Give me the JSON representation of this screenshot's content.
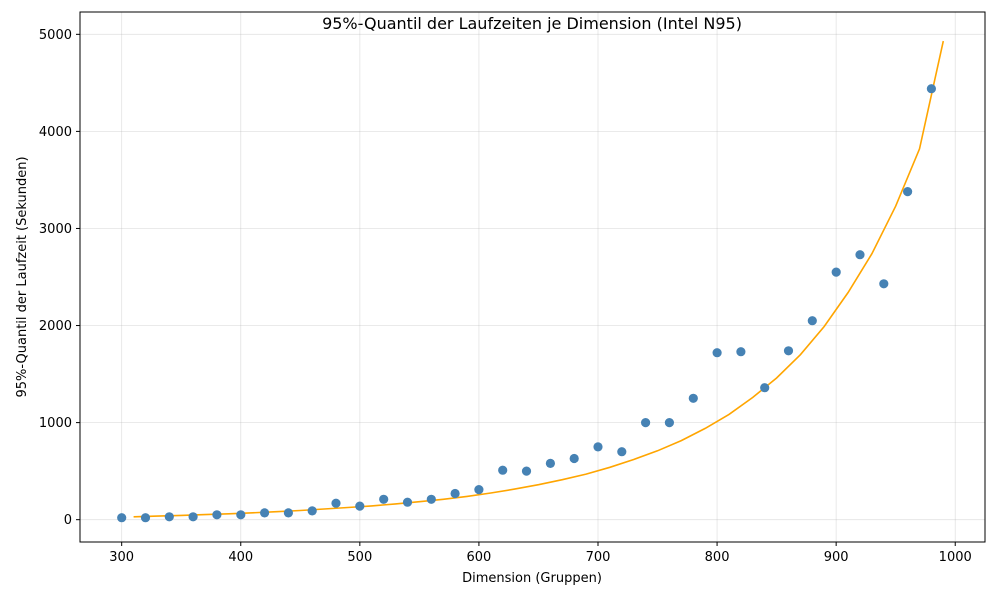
{
  "chart_data": {
    "type": "scatter",
    "title": "95%-Quantil der Laufzeiten je Dimension (Intel N95)",
    "xlabel": "Dimension (Gruppen)",
    "ylabel": "95%-Quantil der Laufzeit (Sekunden)",
    "xlim": [
      265,
      1025
    ],
    "ylim": [
      -230,
      5230
    ],
    "xticks": [
      300,
      400,
      500,
      600,
      700,
      800,
      900,
      1000
    ],
    "yticks": [
      0,
      1000,
      2000,
      3000,
      4000,
      5000
    ],
    "grid": true,
    "colors": {
      "points": "#4682b4",
      "fit": "#ffa500"
    },
    "series": [
      {
        "kind": "scatter",
        "x": [
          300,
          320,
          340,
          360,
          380,
          400,
          420,
          440,
          460,
          480,
          500,
          520,
          540,
          560,
          580,
          600,
          620,
          640,
          660,
          680,
          700,
          720,
          740,
          760,
          780,
          800,
          820,
          840,
          860,
          880,
          900,
          920,
          940,
          960,
          980
        ],
        "y": [
          20,
          20,
          30,
          30,
          50,
          50,
          70,
          70,
          90,
          170,
          140,
          210,
          180,
          210,
          270,
          310,
          510,
          500,
          580,
          630,
          750,
          700,
          1000,
          1000,
          1250,
          1720,
          1730,
          1360,
          1740,
          2050,
          2550,
          2730,
          2430,
          3380,
          4440
        ]
      },
      {
        "kind": "line",
        "x": [
          310,
          330,
          350,
          370,
          390,
          410,
          430,
          450,
          470,
          490,
          510,
          530,
          550,
          570,
          590,
          610,
          630,
          650,
          670,
          690,
          710,
          730,
          750,
          770,
          790,
          810,
          830,
          850,
          870,
          890,
          910,
          930,
          950,
          970,
          990
        ],
        "y": [
          30,
          37,
          44,
          52,
          61,
          71,
          82,
          95,
          110,
          125,
          142,
          162,
          185,
          210,
          240,
          275,
          315,
          360,
          412,
          470,
          540,
          620,
          710,
          815,
          940,
          1085,
          1260,
          1460,
          1700,
          1990,
          2340,
          2740,
          3230,
          3820,
          4930
        ]
      }
    ]
  }
}
